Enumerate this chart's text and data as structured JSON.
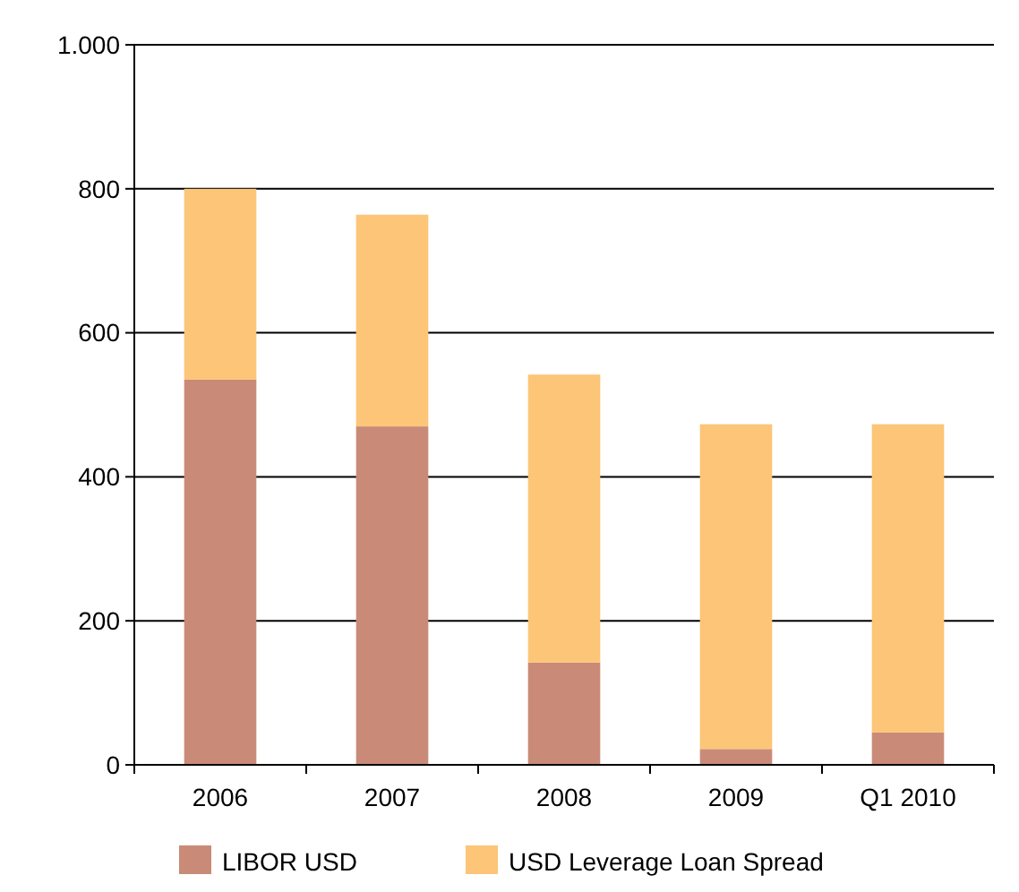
{
  "chart_data": {
    "type": "bar",
    "stacked": true,
    "categories": [
      "2006",
      "2007",
      "2008",
      "2009",
      "Q1 2010"
    ],
    "series": [
      {
        "name": "LIBOR USD",
        "color": "#c98b78",
        "values": [
          535,
          470,
          142,
          22,
          45
        ]
      },
      {
        "name": "USD Leverage Loan Spread",
        "color": "#fcc577",
        "values": [
          265,
          294,
          400,
          451,
          428
        ]
      }
    ],
    "ylim": [
      0,
      1000
    ],
    "yticks": [
      0,
      200,
      400,
      600,
      800,
      {
        "value": 1000,
        "label": "1.000"
      }
    ],
    "grid": "y",
    "legend": "bottom"
  }
}
